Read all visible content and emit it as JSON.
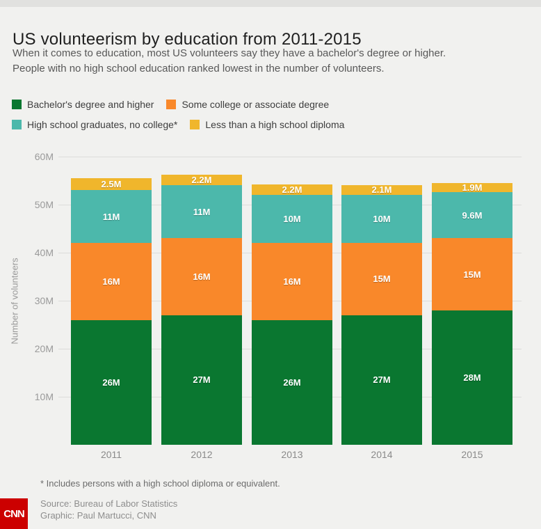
{
  "page": {
    "title": "US volunteerism by education from 2011-2015",
    "subtitle_line1": "When it comes to education, most US volunteers say they have a bachelor's degree or higher.",
    "subtitle_line2": "People with no high school education ranked lowest in the number of volunteers.",
    "footnote": "* Includes persons with a high school diploma or equivalent.",
    "source_line1": "Source: Bureau of Labor Statistics",
    "source_line2": "Graphic: Paul Martucci, CNN",
    "logo_text": "CNN"
  },
  "colors": {
    "green": "#0a7730",
    "orange": "#f9882a",
    "teal": "#4cb8ab",
    "yellow": "#f0b62c",
    "background": "#f1f1ef",
    "cnn_red": "#cc0000",
    "gridline": "#dcdcda"
  },
  "legend": {
    "rows": [
      [
        {
          "label": "Bachelor's degree and higher",
          "color_key": "green"
        },
        {
          "label": "Some college or associate degree",
          "color_key": "orange"
        }
      ],
      [
        {
          "label": "High school graduates, no college*",
          "color_key": "teal"
        },
        {
          "label": "Less than a high school diploma",
          "color_key": "yellow"
        }
      ]
    ]
  },
  "chart_data": {
    "type": "bar",
    "stacked": true,
    "title": "US volunteerism by education from 2011-2015",
    "categories": [
      "2011",
      "2012",
      "2013",
      "2014",
      "2015"
    ],
    "series": [
      {
        "name": "Bachelor's degree and higher",
        "color_key": "green",
        "values": [
          26,
          27,
          26,
          27,
          28
        ],
        "labels": [
          "26M",
          "27M",
          "26M",
          "27M",
          "28M"
        ]
      },
      {
        "name": "Some college or associate degree",
        "color_key": "orange",
        "values": [
          16,
          16,
          16,
          15,
          15
        ],
        "labels": [
          "16M",
          "16M",
          "16M",
          "15M",
          "15M"
        ]
      },
      {
        "name": "High school graduates, no college*",
        "color_key": "teal",
        "values": [
          11,
          11,
          10,
          10,
          9.6
        ],
        "labels": [
          "11M",
          "11M",
          "10M",
          "10M",
          "9.6M"
        ]
      },
      {
        "name": "Less than a high school diploma",
        "color_key": "yellow",
        "values": [
          2.5,
          2.2,
          2.2,
          2.1,
          1.9
        ],
        "labels": [
          "2.5M",
          "2.2M",
          "2.2M",
          "2.1M",
          "1.9M"
        ]
      }
    ],
    "totals": [
      55.5,
      56.2,
      54.2,
      54.1,
      54.5
    ],
    "xlabel": "",
    "ylabel": "Number of volunteers",
    "yticks": [
      "10M",
      "20M",
      "30M",
      "40M",
      "50M",
      "60M"
    ],
    "ytick_values": [
      10,
      20,
      30,
      40,
      50,
      60
    ],
    "ylim": [
      0,
      60
    ],
    "grid": true,
    "legend_position": "top-left"
  }
}
